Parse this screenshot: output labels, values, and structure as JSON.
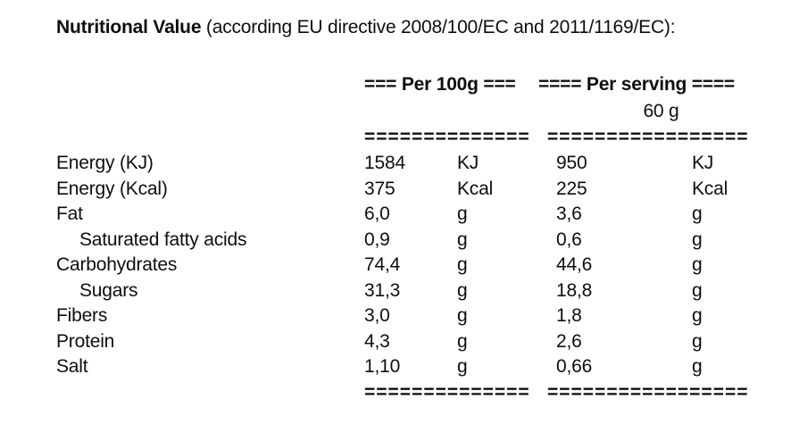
{
  "title": {
    "bold_part": "Nutritional Value",
    "regular_part": " (according EU directive 2008/100/EC and 2011/1169/EC):"
  },
  "colors": {
    "text": "#0e0e0e",
    "background": "#ffffff"
  },
  "table": {
    "groups": [
      {
        "header": "=== Per 100g ===",
        "subheader": "",
        "separator": "=============="
      },
      {
        "header": "==== Per serving ====",
        "subheader": "60 g",
        "separator": "================="
      }
    ],
    "rows": [
      {
        "label": "Energy (KJ)",
        "indent": false,
        "per100g_value": "1584",
        "per100g_unit": "KJ",
        "serving_value": "950",
        "serving_unit": "KJ"
      },
      {
        "label": "Energy (Kcal)",
        "indent": false,
        "per100g_value": "375",
        "per100g_unit": "Kcal",
        "serving_value": "225",
        "serving_unit": "Kcal"
      },
      {
        "label": "Fat",
        "indent": false,
        "per100g_value": "6,0",
        "per100g_unit": "g",
        "serving_value": "3,6",
        "serving_unit": "g"
      },
      {
        "label": "Saturated fatty acids",
        "indent": true,
        "per100g_value": "0,9",
        "per100g_unit": "g",
        "serving_value": "0,6",
        "serving_unit": "g"
      },
      {
        "label": "Carbohydrates",
        "indent": false,
        "per100g_value": "74,4",
        "per100g_unit": "g",
        "serving_value": "44,6",
        "serving_unit": "g"
      },
      {
        "label": "Sugars",
        "indent": true,
        "per100g_value": "31,3",
        "per100g_unit": "g",
        "serving_value": "18,8",
        "serving_unit": "g"
      },
      {
        "label": "Fibers",
        "indent": false,
        "per100g_value": "3,0",
        "per100g_unit": "g",
        "serving_value": "1,8",
        "serving_unit": "g"
      },
      {
        "label": "Protein",
        "indent": false,
        "per100g_value": "4,3",
        "per100g_unit": "g",
        "serving_value": "2,6",
        "serving_unit": "g"
      },
      {
        "label": "Salt",
        "indent": false,
        "per100g_value": "1,10",
        "per100g_unit": "g",
        "serving_value": "0,66",
        "serving_unit": "g"
      }
    ]
  }
}
